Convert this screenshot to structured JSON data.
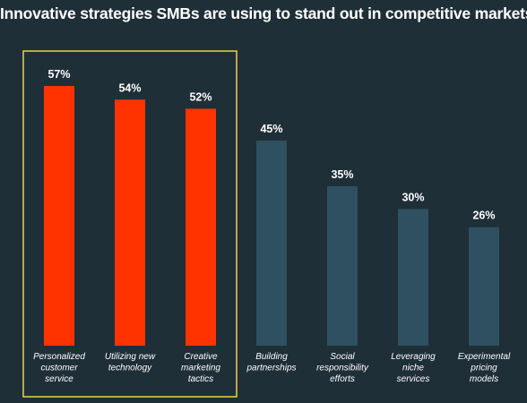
{
  "chart_data": {
    "type": "bar",
    "title": "Innovative strategies SMBs are using to stand out in competitive markets",
    "categories": [
      [
        "Personalized",
        "customer",
        "service"
      ],
      [
        "Utilizing new",
        "technology"
      ],
      [
        "Creative",
        "marketing",
        "tactics"
      ],
      [
        "Building",
        "partnerships"
      ],
      [
        "Social",
        "responsibility",
        "efforts"
      ],
      [
        "Leveraging",
        "niche",
        "services"
      ],
      [
        "Experimental",
        "pricing",
        "models"
      ]
    ],
    "values": [
      57,
      54,
      52,
      45,
      35,
      30,
      26
    ],
    "value_labels": [
      "57%",
      "54%",
      "52%",
      "45%",
      "35%",
      "30%",
      "26%"
    ],
    "ylim": [
      0,
      57
    ],
    "highlighted": [
      0,
      1,
      2
    ],
    "grid": false,
    "colors": {
      "background": "#1f2f38",
      "highlight_bar": "#ff3300",
      "bar": "#2f5060",
      "highlight_box": "#e8d44d",
      "text": "#ffffff"
    }
  }
}
